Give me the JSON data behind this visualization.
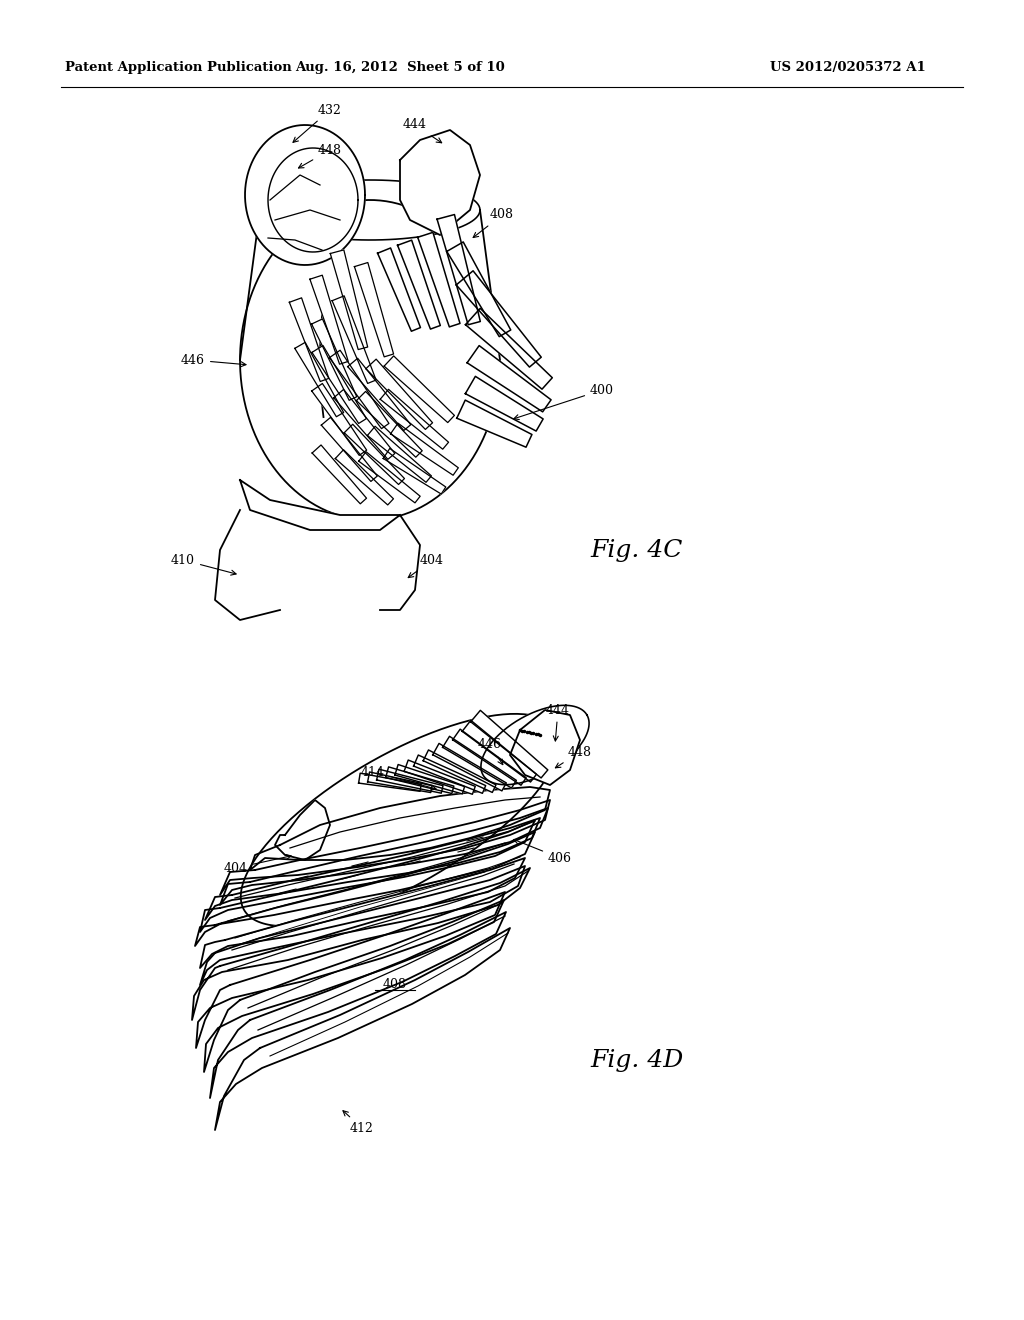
{
  "bg_color": "#ffffff",
  "header_left": "Patent Application Publication",
  "header_mid": "Aug. 16, 2012  Sheet 5 of 10",
  "header_right": "US 2012/0205372 A1",
  "fig4c_label": "Fig. 4C",
  "fig4d_label": "Fig. 4D",
  "line_color": "#000000",
  "text_color": "#000000",
  "lw": 1.3,
  "figsize": [
    10.24,
    13.2
  ],
  "dpi": 100
}
